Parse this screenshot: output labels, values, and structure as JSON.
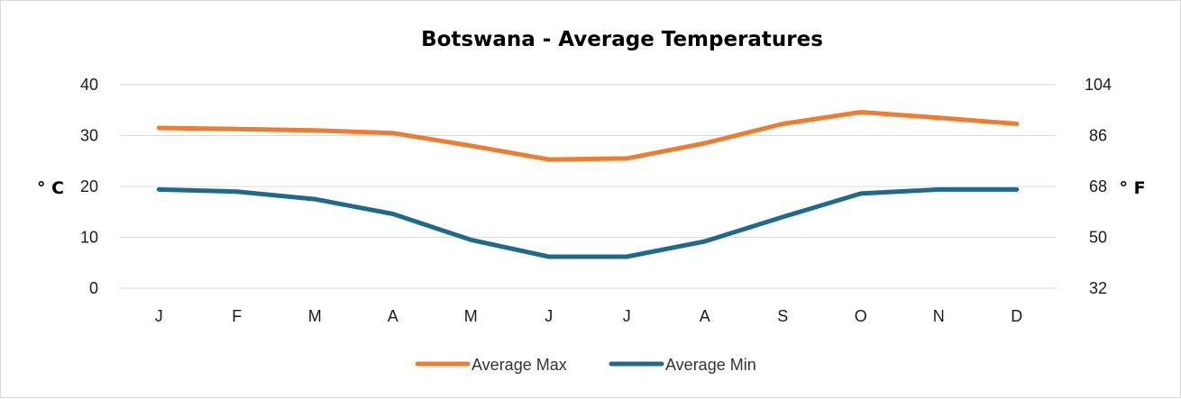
{
  "chart_data": {
    "type": "line",
    "title": "Botswana - Average Temperatures",
    "categories": [
      "J",
      "F",
      "M",
      "A",
      "M",
      "J",
      "J",
      "A",
      "S",
      "O",
      "N",
      "D"
    ],
    "series": [
      {
        "name": "Average Max",
        "color": "#ED7D31",
        "values": [
          31.5,
          31.3,
          31.0,
          30.5,
          28.0,
          25.3,
          25.5,
          28.5,
          32.3,
          34.6,
          33.5,
          32.3
        ]
      },
      {
        "name": "Average Min",
        "color": "#1F6A8A",
        "values": [
          19.4,
          19.0,
          17.5,
          14.6,
          9.5,
          6.2,
          6.2,
          9.2,
          14.0,
          18.6,
          19.4,
          19.4
        ]
      }
    ],
    "ylabel": "° C",
    "y2label": "° F",
    "ylim": [
      0,
      40
    ],
    "yticks": [
      0,
      10,
      20,
      30,
      40
    ],
    "y2ticks": [
      32,
      50,
      68,
      86,
      104
    ],
    "grid": true,
    "legend": "bottom"
  }
}
